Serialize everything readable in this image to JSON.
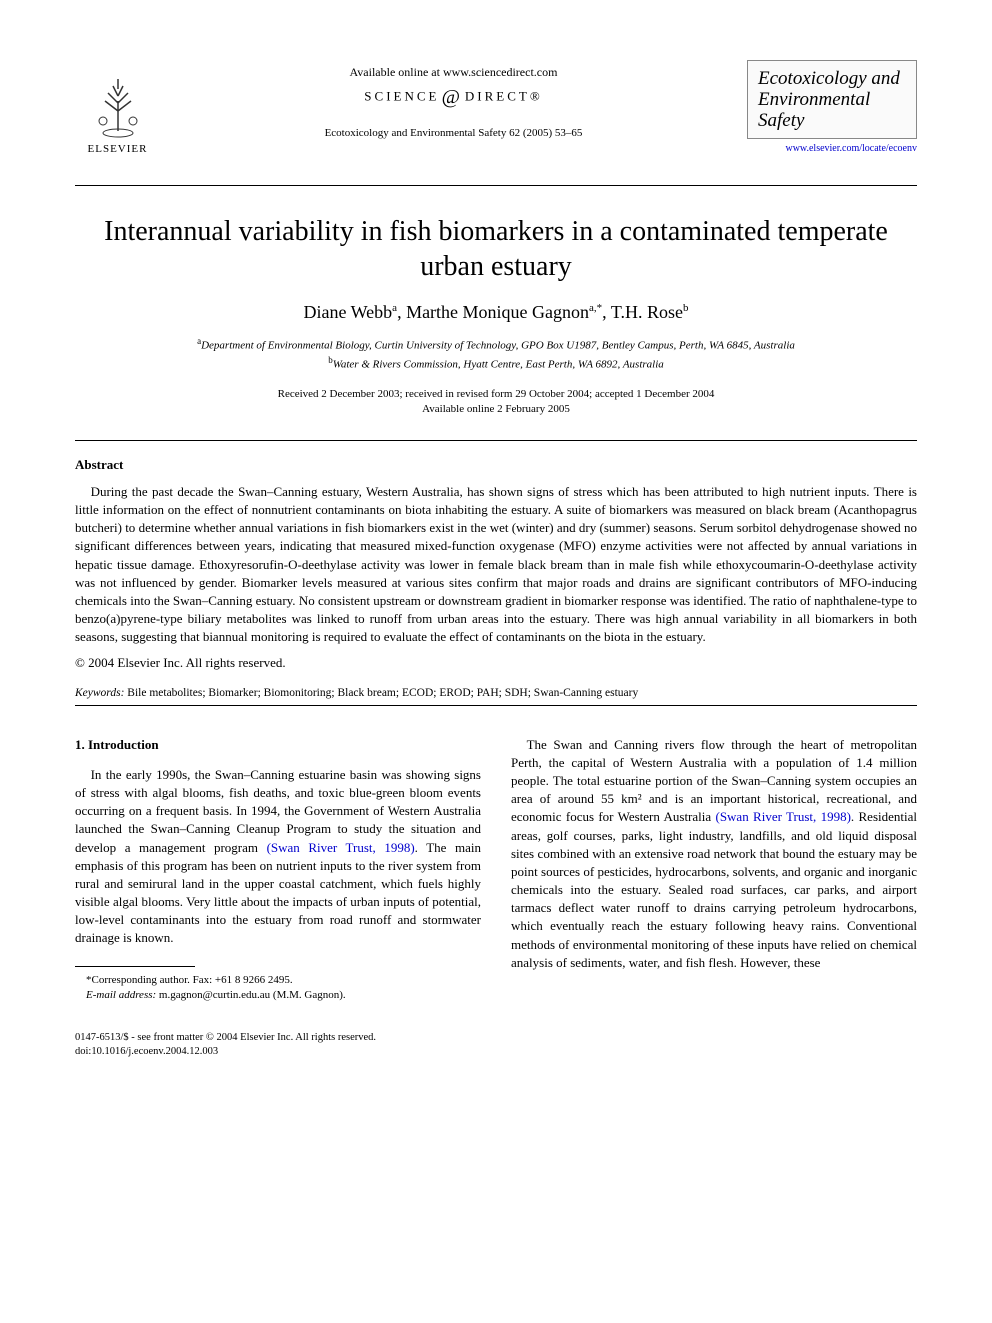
{
  "header": {
    "publisher_name": "ELSEVIER",
    "available_online": "Available online at www.sciencedirect.com",
    "sciencedirect_left": "SCIENCE",
    "sciencedirect_right": "DIRECT®",
    "journal_ref": "Ecotoxicology and Environmental Safety 62 (2005) 53–65",
    "journal_box_title": "Ecotoxicology and Environmental Safety",
    "journal_url": "www.elsevier.com/locate/ecoenv"
  },
  "article": {
    "title": "Interannual variability in fish biomarkers in a contaminated temperate urban estuary",
    "authors_html": "Diane Webb<sup>a</sup>, Marthe Monique Gagnon<sup>a,*</sup>, T.H. Rose<sup>b</sup>",
    "affiliations": [
      {
        "mark": "a",
        "text": "Department of Environmental Biology, Curtin University of Technology, GPO Box U1987, Bentley Campus, Perth, WA 6845, Australia"
      },
      {
        "mark": "b",
        "text": "Water & Rivers Commission, Hyatt Centre, East Perth, WA 6892, Australia"
      }
    ],
    "dates_line1": "Received 2 December 2003; received in revised form 29 October 2004; accepted 1 December 2004",
    "dates_line2": "Available online 2 February 2005"
  },
  "abstract": {
    "heading": "Abstract",
    "text": "During the past decade the Swan–Canning estuary, Western Australia, has shown signs of stress which has been attributed to high nutrient inputs. There is little information on the effect of nonnutrient contaminants on biota inhabiting the estuary. A suite of biomarkers was measured on black bream (Acanthopagrus butcheri) to determine whether annual variations in fish biomarkers exist in the wet (winter) and dry (summer) seasons. Serum sorbitol dehydrogenase showed no significant differences between years, indicating that measured mixed-function oxygenase (MFO) enzyme activities were not affected by annual variations in hepatic tissue damage. Ethoxyresorufin-O-deethylase activity was lower in female black bream than in male fish while ethoxycoumarin-O-deethylase activity was not influenced by gender. Biomarker levels measured at various sites confirm that major roads and drains are significant contributors of MFO-inducing chemicals into the Swan–Canning estuary. No consistent upstream or downstream gradient in biomarker response was identified. The ratio of naphthalene-type to benzo(a)pyrene-type biliary metabolites was linked to runoff from urban areas into the estuary. There was high annual variability in all biomarkers in both seasons, suggesting that biannual monitoring is required to evaluate the effect of contaminants on the biota in the estuary.",
    "copyright": "© 2004 Elsevier Inc. All rights reserved."
  },
  "keywords": {
    "label": "Keywords:",
    "list": "Bile metabolites; Biomarker; Biomonitoring; Black bream; ECOD; EROD; PAH; SDH; Swan-Canning estuary"
  },
  "body": {
    "intro_heading": "1. Introduction",
    "col1_para1_a": "In the early 1990s, the Swan–Canning estuarine basin was showing signs of stress with algal blooms, fish deaths, and toxic blue-green bloom events occurring on a frequent basis. In 1994, the Government of Western Australia launched the Swan–Canning Cleanup Program to study the situation and develop a management program ",
    "col1_para1_cite": "(Swan River Trust, 1998)",
    "col1_para1_b": ". The main emphasis of this program has been on nutrient inputs to the river system from rural and semirural land in the upper coastal catchment, which fuels highly visible algal blooms. Very little about the impacts of urban inputs of potential, low-level contaminants into the estuary from road runoff and stormwater drainage is known.",
    "col2_para1_a": "The Swan and Canning rivers flow through the heart of metropolitan Perth, the capital of Western Australia with a population of 1.4 million people. The total estuarine portion of the Swan–Canning system occupies an area of around 55 km² and is an important historical, recreational, and economic focus for Western Australia ",
    "col2_para1_cite": "(Swan River Trust, 1998)",
    "col2_para1_b": ". Residential areas, golf courses, parks, light industry, landfills, and old liquid disposal sites combined with an extensive road network that bound the estuary may be point sources of pesticides, hydrocarbons, solvents, and organic and inorganic chemicals into the estuary. Sealed road surfaces, car parks, and airport tarmacs deflect water runoff to drains carrying petroleum hydrocarbons, which eventually reach the estuary following heavy rains. Conventional methods of environmental monitoring of these inputs have relied on chemical analysis of sediments, water, and fish flesh. However, these"
  },
  "footnotes": {
    "corresponding": "*Corresponding author. Fax: +61 8 9266 2495.",
    "email_label": "E-mail address:",
    "email_value": "m.gagnon@curtin.edu.au (M.M. Gagnon)."
  },
  "footer": {
    "line1": "0147-6513/$ - see front matter © 2004 Elsevier Inc. All rights reserved.",
    "line2": "doi:10.1016/j.ecoenv.2004.12.003"
  }
}
